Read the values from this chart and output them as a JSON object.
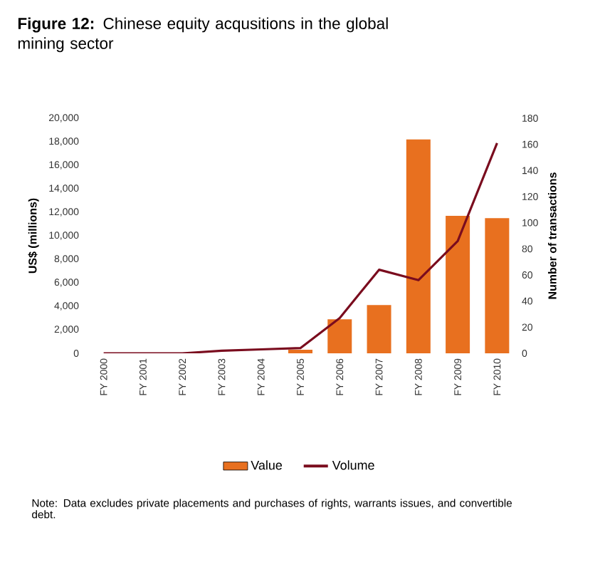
{
  "chart_data": {
    "type": "bar",
    "title": "**Figure 12:** Chinese equity acqusitions in the global mining sector",
    "categories": [
      "FY 2000",
      "FY 2001",
      "FY 2002",
      "FY 2003",
      "FY 2004",
      "FY 2005",
      "FY 2006",
      "FY 2007",
      "FY 2008",
      "FY 2009",
      "FY 2010"
    ],
    "series": [
      {
        "name": "Value",
        "type": "bar",
        "color": "#e8701f",
        "values": [
          0,
          0,
          0,
          0,
          0,
          300,
          2900,
          4100,
          18200,
          11700,
          11500
        ]
      },
      {
        "name": "Volume",
        "type": "line",
        "axis": "y2",
        "color": "#7a0c1e",
        "values": [
          0,
          0,
          0,
          2,
          3,
          4,
          27,
          64,
          56,
          86,
          161
        ]
      }
    ],
    "ylabel": "US$ (millions)",
    "y2label": "Number of transactions",
    "ylim": [
      0,
      20000
    ],
    "yticks": [
      {
        "value": 0,
        "label": "0"
      },
      {
        "value": 2000,
        "label": "2,000"
      },
      {
        "value": 4000,
        "label": "4,000"
      },
      {
        "value": 6000,
        "label": "6,000"
      },
      {
        "value": 8000,
        "label": "8,000"
      },
      {
        "value": 10000,
        "label": "10,000"
      },
      {
        "value": 12000,
        "label": "12,000"
      },
      {
        "value": 14000,
        "label": "14,000"
      },
      {
        "value": 16000,
        "label": "16,000"
      },
      {
        "value": 18000,
        "label": "18,000"
      },
      {
        "value": 20000,
        "label": "20,000"
      }
    ],
    "y2lim": [
      0,
      180
    ],
    "y2ticks": [
      0,
      20,
      40,
      60,
      80,
      100,
      120,
      140,
      160,
      180
    ],
    "legend": "bottom",
    "grid": false,
    "annotations": [
      "Note: Data excludes private placements and purchases of rights, warrants issues, and convertible debt."
    ]
  }
}
